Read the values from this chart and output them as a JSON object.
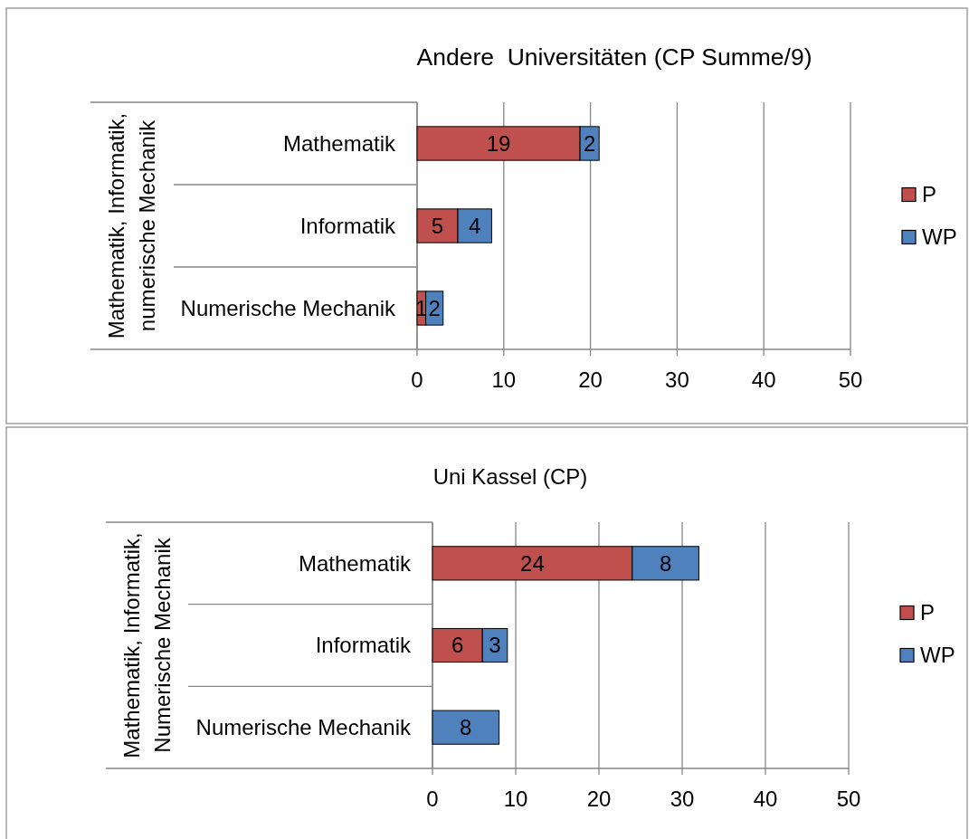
{
  "chart_data": [
    {
      "type": "bar",
      "orientation": "horizontal",
      "stacked": true,
      "title": "Andere  Universitäten (CP Summe/9)",
      "ylabel": "Mathematik, Informatik, numerische Mechanik",
      "categories": [
        "Mathematik",
        "Informatik",
        "Numerische Mechanik"
      ],
      "series": [
        {
          "name": "P",
          "color": "#c0504d",
          "values": [
            18.8,
            4.7,
            1.0
          ],
          "value_labels": [
            "19",
            "5",
            "1"
          ]
        },
        {
          "name": "WP",
          "color": "#4f81bd",
          "values": [
            2.2,
            3.9,
            2.0
          ],
          "value_labels": [
            "2",
            "4",
            "2"
          ]
        }
      ],
      "xlim": [
        0,
        50
      ],
      "xticks": [
        0,
        10,
        20,
        30,
        40,
        50
      ],
      "grid": "x",
      "legend": "right"
    },
    {
      "type": "bar",
      "orientation": "horizontal",
      "stacked": true,
      "title": "Uni Kassel (CP)",
      "ylabel": "Mathematik, Informatik, Numerische Mechanik",
      "categories": [
        "Mathematik",
        "Informatik",
        "Numerische Mechanik"
      ],
      "series": [
        {
          "name": "P",
          "color": "#c0504d",
          "values": [
            24,
            6,
            null
          ]
        },
        {
          "name": "WP",
          "color": "#4f81bd",
          "values": [
            8,
            3,
            8
          ]
        }
      ],
      "xlim": [
        0,
        50
      ],
      "xticks": [
        0,
        10,
        20,
        30,
        40,
        50
      ],
      "grid": "x",
      "legend": "right",
      "data_labels": true
    }
  ]
}
